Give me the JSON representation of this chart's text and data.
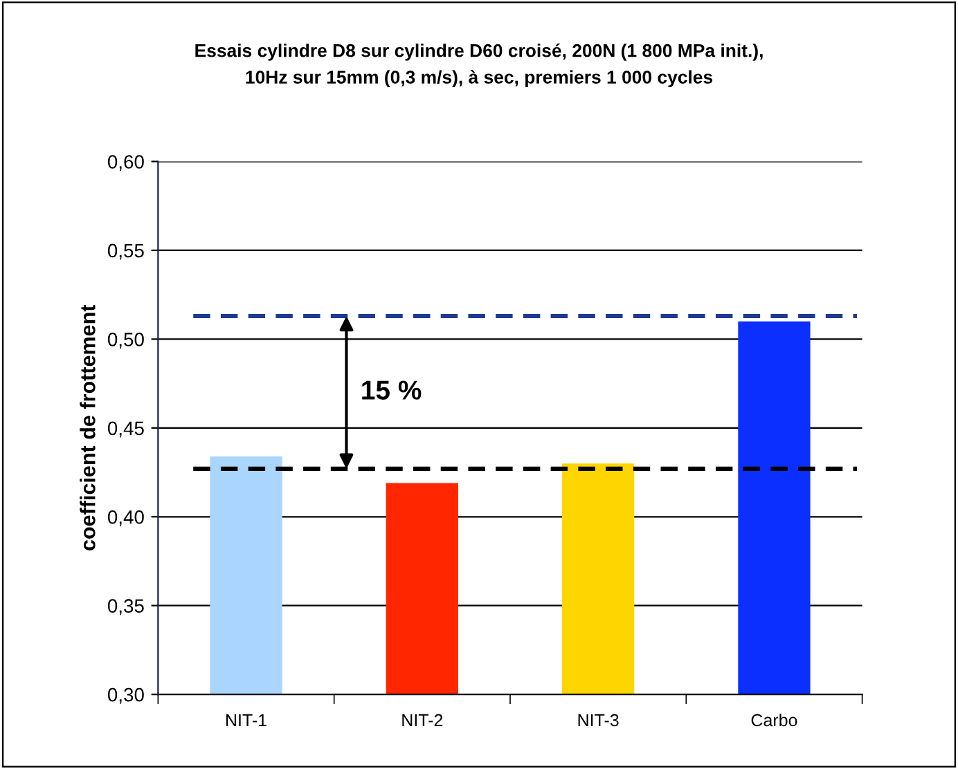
{
  "chart_data": {
    "type": "bar",
    "title": "Essais cylindre D8 sur cylindre D60 croisé, 200N (1 800 MPa init.),\n10Hz sur 15mm (0,3 m/s), à sec, premiers 1 000 cycles",
    "ylabel": "coefficient de frottement",
    "categories": [
      "NIT-1",
      "NIT-2",
      "NIT-3",
      "Carbo"
    ],
    "values": [
      0.434,
      0.419,
      0.43,
      0.51
    ],
    "colors": [
      "#a9d5ff",
      "#ff2600",
      "#ffd500",
      "#0b2fff"
    ],
    "ylim": [
      0.3,
      0.6
    ],
    "yticks": [
      {
        "value": 0.3,
        "label": "0,30"
      },
      {
        "value": 0.35,
        "label": "0,35"
      },
      {
        "value": 0.4,
        "label": "0,40"
      },
      {
        "value": 0.45,
        "label": "0,45"
      },
      {
        "value": 0.5,
        "label": "0,50"
      },
      {
        "value": 0.55,
        "label": "0,55"
      },
      {
        "value": 0.6,
        "label": "0,60"
      }
    ],
    "grid": "y",
    "ref_lines": [
      {
        "axis": "y",
        "value": 0.513,
        "color": "#1f3a93",
        "line_style": "dashed"
      },
      {
        "axis": "y",
        "value": 0.427,
        "color": "#000000",
        "line_style": "dashed"
      }
    ],
    "annotations": [
      "15 %"
    ]
  }
}
